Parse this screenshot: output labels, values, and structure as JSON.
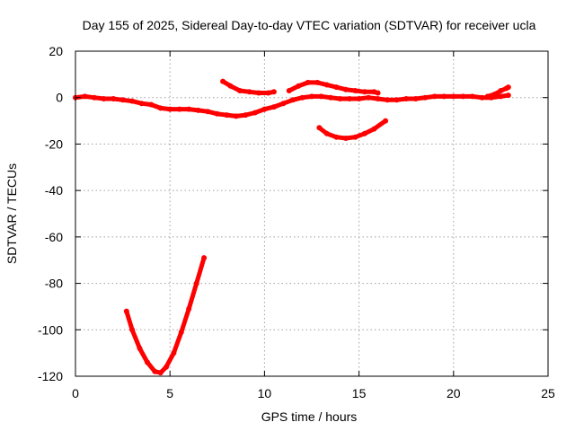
{
  "chart_data": {
    "type": "scatter",
    "title": "Day 155 of 2025, Sidereal Day-to-day VTEC variation (SDTVAR) for receiver ucla",
    "xlabel": "GPS time / hours",
    "ylabel": "SDTVAR / TECUs",
    "xlim": [
      0,
      25
    ],
    "ylim": [
      -120,
      20
    ],
    "xticks": [
      0,
      5,
      10,
      15,
      20,
      25
    ],
    "yticks": [
      20,
      0,
      -20,
      -40,
      -60,
      -80,
      -100,
      -120
    ],
    "xtick_labels": [
      "0",
      "5",
      "10",
      "15",
      "20",
      "25"
    ],
    "ytick_labels": [
      "20",
      "0",
      "-20",
      "-40",
      "-60",
      "-80",
      "-100",
      "-120"
    ],
    "grid": true,
    "legend": "none",
    "color": "#ff0000",
    "series": [
      {
        "points": [
          [
            0.0,
            0.0
          ],
          [
            0.5,
            0.5
          ],
          [
            1.0,
            0.0
          ],
          [
            1.5,
            -0.5
          ],
          [
            2.0,
            -0.5
          ],
          [
            2.5,
            -1.0
          ],
          [
            3.0,
            -1.5
          ],
          [
            3.5,
            -2.5
          ],
          [
            4.0,
            -3.0
          ],
          [
            4.5,
            -4.5
          ],
          [
            5.0,
            -5.0
          ],
          [
            5.5,
            -5.0
          ],
          [
            6.0,
            -5.0
          ],
          [
            6.5,
            -5.5
          ],
          [
            7.0,
            -6.0
          ],
          [
            7.5,
            -7.0
          ],
          [
            8.0,
            -7.5
          ],
          [
            8.5,
            -8.0
          ],
          [
            9.0,
            -7.5
          ],
          [
            9.5,
            -6.5
          ],
          [
            10.0,
            -5.0
          ],
          [
            10.5,
            -4.0
          ],
          [
            11.0,
            -2.5
          ],
          [
            11.5,
            -1.0
          ],
          [
            12.0,
            0.0
          ],
          [
            12.5,
            0.5
          ],
          [
            13.0,
            0.5
          ],
          [
            13.5,
            0.0
          ],
          [
            14.0,
            -0.5
          ],
          [
            14.5,
            -0.5
          ],
          [
            15.0,
            -0.5
          ],
          [
            15.5,
            0.0
          ],
          [
            16.0,
            -0.5
          ],
          [
            16.5,
            -1.0
          ],
          [
            17.0,
            -1.0
          ],
          [
            17.5,
            -0.5
          ],
          [
            18.0,
            -0.5
          ],
          [
            18.5,
            0.0
          ],
          [
            19.0,
            0.5
          ],
          [
            19.5,
            0.5
          ],
          [
            20.0,
            0.5
          ],
          [
            20.5,
            0.5
          ],
          [
            21.0,
            0.5
          ],
          [
            21.5,
            0.0
          ],
          [
            22.0,
            0.0
          ],
          [
            22.5,
            0.5
          ],
          [
            22.9,
            1.0
          ]
        ]
      },
      {
        "points": [
          [
            2.7,
            -92.0
          ],
          [
            3.0,
            -100.0
          ],
          [
            3.4,
            -108.0
          ],
          [
            3.8,
            -114.0
          ],
          [
            4.2,
            -118.0
          ],
          [
            4.5,
            -118.5
          ],
          [
            4.8,
            -116.0
          ],
          [
            5.2,
            -110.0
          ],
          [
            5.6,
            -101.0
          ],
          [
            6.0,
            -91.0
          ],
          [
            6.4,
            -80.0
          ],
          [
            6.8,
            -69.0
          ]
        ]
      },
      {
        "points": [
          [
            7.8,
            7.0
          ],
          [
            8.2,
            5.0
          ],
          [
            8.7,
            3.0
          ],
          [
            9.2,
            2.5
          ],
          [
            9.7,
            2.0
          ],
          [
            10.2,
            2.0
          ],
          [
            10.5,
            2.5
          ]
        ]
      },
      {
        "points": [
          [
            11.3,
            3.0
          ],
          [
            11.8,
            5.0
          ],
          [
            12.3,
            6.5
          ],
          [
            12.8,
            6.5
          ],
          [
            13.3,
            5.5
          ],
          [
            13.8,
            4.5
          ],
          [
            14.3,
            3.5
          ],
          [
            14.8,
            3.0
          ],
          [
            15.3,
            2.5
          ],
          [
            15.8,
            2.5
          ],
          [
            16.0,
            2.0
          ]
        ]
      },
      {
        "points": [
          [
            12.9,
            -13.0
          ],
          [
            13.3,
            -15.5
          ],
          [
            13.8,
            -17.0
          ],
          [
            14.3,
            -17.5
          ],
          [
            14.8,
            -17.0
          ],
          [
            15.3,
            -15.5
          ],
          [
            15.8,
            -13.5
          ],
          [
            16.4,
            -10.0
          ]
        ]
      },
      {
        "points": [
          [
            21.8,
            0.5
          ],
          [
            22.2,
            1.5
          ],
          [
            22.5,
            3.0
          ],
          [
            22.8,
            4.0
          ],
          [
            22.9,
            4.5
          ]
        ]
      }
    ]
  }
}
